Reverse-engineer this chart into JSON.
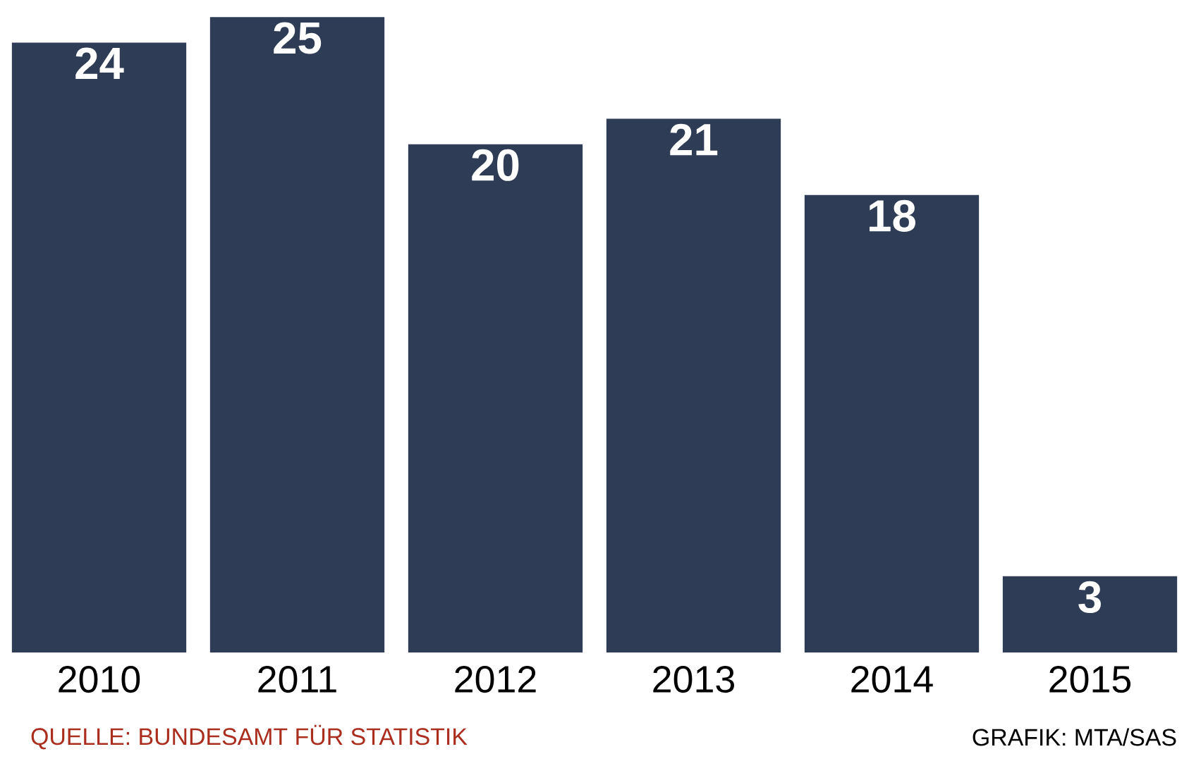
{
  "chart_data": {
    "type": "bar",
    "categories": [
      "2010",
      "2011",
      "2012",
      "2013",
      "2014",
      "2015"
    ],
    "values": [
      24,
      25,
      20,
      21,
      18,
      3
    ],
    "color": "#2e3d55",
    "data_labels": true,
    "annotations": [
      "QUELLE: BUNDESAMT FÜR STATISTIK",
      "GRAFIK: MTA/SAS"
    ]
  }
}
